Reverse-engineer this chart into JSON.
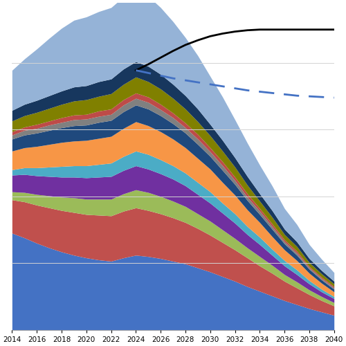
{
  "years": [
    2014,
    2015,
    2016,
    2017,
    2018,
    2019,
    2020,
    2021,
    2022,
    2023,
    2024,
    2025,
    2026,
    2027,
    2028,
    2029,
    2030,
    2031,
    2032,
    2033,
    2034,
    2035,
    2036,
    2037,
    2038,
    2039,
    2040
  ],
  "layers": [
    {
      "name": "bottom_blue",
      "color": "#4472C4",
      "values": [
        145,
        138,
        130,
        123,
        117,
        112,
        108,
        105,
        103,
        108,
        112,
        110,
        107,
        103,
        99,
        93,
        87,
        80,
        73,
        65,
        58,
        51,
        44,
        38,
        32,
        27,
        22
      ]
    },
    {
      "name": "red",
      "color": "#C0504D",
      "values": [
        50,
        54,
        57,
        60,
        62,
        64,
        65,
        67,
        68,
        70,
        71,
        69,
        67,
        65,
        62,
        59,
        55,
        51,
        47,
        43,
        38,
        34,
        29,
        25,
        21,
        17,
        14
      ]
    },
    {
      "name": "yellow_green",
      "color": "#9BBB59",
      "values": [
        12,
        14,
        16,
        18,
        20,
        22,
        23,
        24,
        25,
        26,
        27,
        27,
        26,
        25,
        24,
        22,
        21,
        19,
        17,
        15,
        14,
        12,
        10,
        9,
        7,
        6,
        5
      ]
    },
    {
      "name": "purple",
      "color": "#7030A0",
      "values": [
        25,
        27,
        28,
        29,
        30,
        31,
        32,
        33,
        34,
        35,
        36,
        35,
        34,
        33,
        31,
        29,
        27,
        25,
        23,
        20,
        18,
        15,
        13,
        11,
        9,
        7,
        6
      ]
    },
    {
      "name": "teal",
      "color": "#4BACC6",
      "values": [
        8,
        10,
        12,
        14,
        16,
        17,
        18,
        19,
        20,
        21,
        22,
        22,
        21,
        20,
        19,
        18,
        17,
        15,
        14,
        12,
        11,
        9,
        8,
        7,
        5,
        4,
        3
      ]
    },
    {
      "name": "orange",
      "color": "#F79646",
      "values": [
        28,
        30,
        32,
        34,
        36,
        37,
        38,
        39,
        40,
        42,
        44,
        43,
        42,
        40,
        38,
        36,
        34,
        31,
        28,
        25,
        22,
        19,
        16,
        14,
        11,
        9,
        7
      ]
    },
    {
      "name": "dark_blue",
      "color": "#1F497D",
      "values": [
        18,
        19,
        20,
        21,
        22,
        23,
        23,
        24,
        24,
        25,
        25,
        25,
        24,
        23,
        22,
        21,
        19,
        18,
        16,
        14,
        12,
        11,
        9,
        8,
        6,
        5,
        4
      ]
    },
    {
      "name": "gray",
      "color": "#808080",
      "values": [
        6,
        7,
        7,
        8,
        8,
        9,
        9,
        9,
        9,
        10,
        10,
        10,
        9,
        9,
        8,
        8,
        7,
        7,
        6,
        5,
        5,
        4,
        3,
        3,
        2,
        2,
        2
      ]
    },
    {
      "name": "rust_red",
      "color": "#BE4B48",
      "values": [
        5,
        5,
        6,
        6,
        7,
        7,
        7,
        8,
        8,
        8,
        8,
        8,
        8,
        7,
        7,
        7,
        6,
        6,
        5,
        5,
        4,
        4,
        3,
        3,
        2,
        2,
        2
      ]
    },
    {
      "name": "olive",
      "color": "#808000",
      "values": [
        16,
        17,
        18,
        19,
        20,
        21,
        22,
        22,
        23,
        23,
        24,
        23,
        23,
        22,
        21,
        19,
        18,
        16,
        15,
        13,
        11,
        10,
        8,
        7,
        6,
        5,
        4
      ]
    },
    {
      "name": "navy",
      "color": "#17375E",
      "values": [
        16,
        17,
        18,
        19,
        20,
        21,
        21,
        22,
        22,
        23,
        23,
        23,
        22,
        21,
        20,
        19,
        17,
        16,
        14,
        13,
        11,
        10,
        8,
        7,
        6,
        5,
        4
      ]
    },
    {
      "name": "light_blue_top",
      "color": "#95B3D7",
      "values": [
        60,
        68,
        77,
        86,
        94,
        100,
        103,
        105,
        107,
        108,
        108,
        105,
        100,
        94,
        87,
        80,
        72,
        65,
        57,
        50,
        43,
        37,
        31,
        26,
        21,
        17,
        13
      ]
    }
  ],
  "line_solid": {
    "color": "#000000",
    "values": [
      null,
      null,
      null,
      null,
      null,
      null,
      null,
      null,
      null,
      null,
      389,
      398,
      408,
      418,
      427,
      434,
      440,
      444,
      447,
      449,
      450,
      450,
      450,
      450,
      450,
      450,
      450
    ]
  },
  "line_dashed": {
    "color": "#4472C4",
    "values": [
      null,
      null,
      null,
      null,
      null,
      null,
      null,
      null,
      null,
      null,
      389,
      385,
      381,
      377,
      374,
      371,
      368,
      365,
      362,
      359,
      357,
      355,
      353,
      351,
      350,
      349,
      348
    ]
  },
  "xlim": [
    2014,
    2040
  ],
  "ylim": [
    0,
    490
  ],
  "xticks": [
    2014,
    2016,
    2018,
    2020,
    2022,
    2024,
    2026,
    2028,
    2030,
    2032,
    2034,
    2036,
    2038,
    2040
  ],
  "background_color": "#FFFFFF",
  "grid_color": "#D3D3D3",
  "grid_yticks": [
    100,
    200,
    300,
    400
  ]
}
